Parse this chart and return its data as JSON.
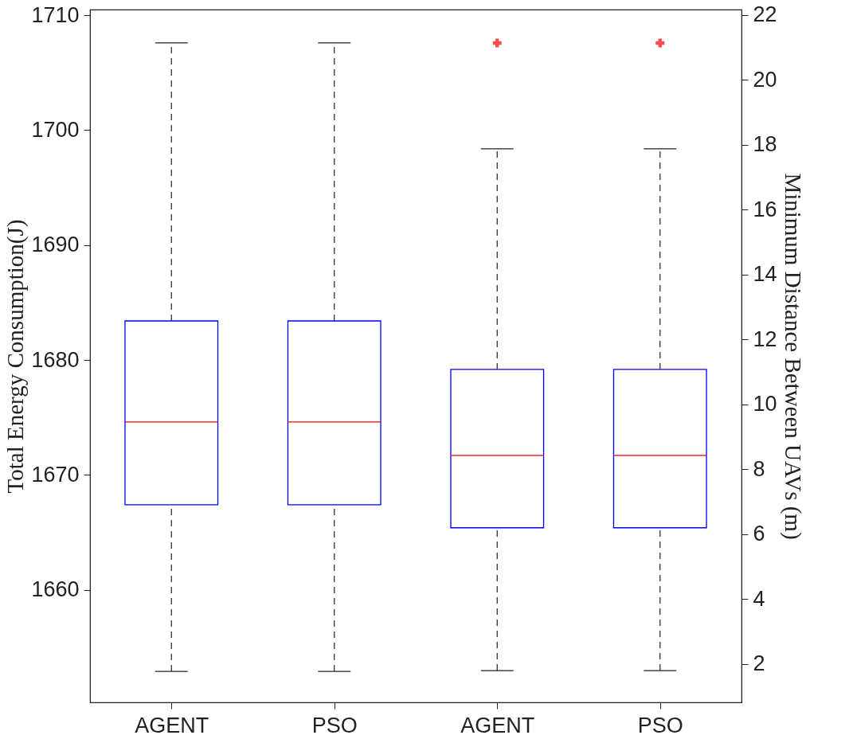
{
  "chart_data": {
    "type": "box",
    "categories": [
      "AGENT",
      "PSO",
      "AGENT",
      "PSO"
    ],
    "ylabel": "Total Energy Consumption(J)",
    "y2label": "Minimum Distance Between UAVs (m)",
    "ylim": [
      1650.2,
      1710.5
    ],
    "yticks": [
      1660,
      1670,
      1680,
      1690,
      1700,
      1710
    ],
    "y2lim": [
      0.82,
      22.17
    ],
    "y2ticks": [
      2,
      4,
      6,
      8,
      10,
      12,
      14,
      16,
      18,
      20,
      22
    ],
    "grid": false,
    "series": [
      {
        "color": "#0000ff",
        "boxes": [
          {
            "low": 1652.9,
            "q1": 1667.4,
            "median": 1674.6,
            "q3": 1683.4,
            "high": 1707.6
          },
          {
            "low": 1652.9,
            "q1": 1667.4,
            "median": 1674.6,
            "q3": 1683.4,
            "high": 1707.6
          },
          null,
          null
        ]
      },
      {
        "color": "#0000ff",
        "axis": "y2",
        "boxes": [
          null,
          null,
          {
            "low": 1.8,
            "q1": 6.2,
            "median": 8.43,
            "q3": 11.08,
            "high": 17.88,
            "outliers": [
              21.14
            ]
          },
          {
            "low": 1.8,
            "q1": 6.2,
            "median": 8.43,
            "q3": 11.08,
            "high": 17.88,
            "outliers": [
              21.14
            ]
          }
        ]
      }
    ]
  }
}
